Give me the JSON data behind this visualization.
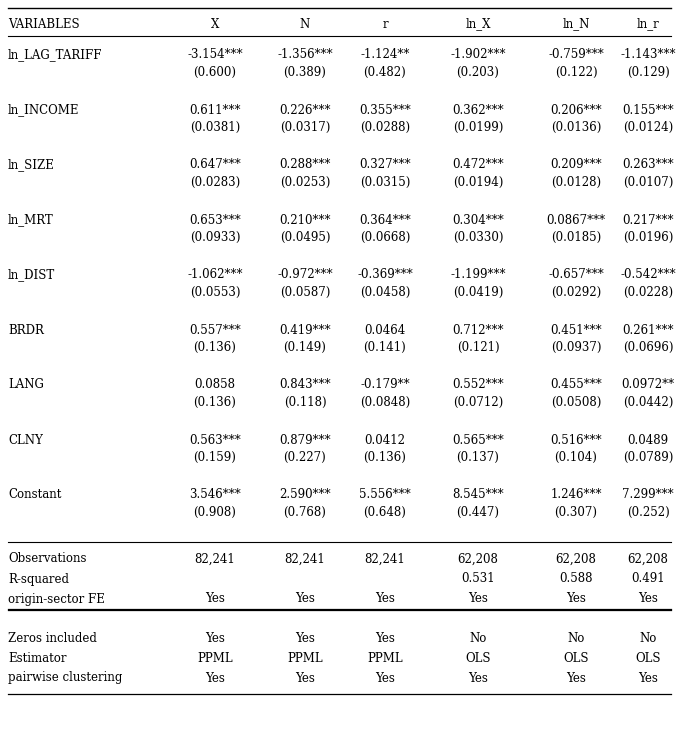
{
  "columns": [
    "VARIABLES",
    "X",
    "N",
    "r",
    "ln_X",
    "ln_N",
    "ln_r"
  ],
  "rows": [
    {
      "var": "ln_LAG_TARIFF",
      "coefs": [
        "-3.154***",
        "-1.356***",
        "-1.124**",
        "-1.902***",
        "-0.759***",
        "-1.143***"
      ],
      "ses": [
        "(0.600)",
        "(0.389)",
        "(0.482)",
        "(0.203)",
        "(0.122)",
        "(0.129)"
      ]
    },
    {
      "var": "ln_INCOME",
      "coefs": [
        "0.611***",
        "0.226***",
        "0.355***",
        "0.362***",
        "0.206***",
        "0.155***"
      ],
      "ses": [
        "(0.0381)",
        "(0.0317)",
        "(0.0288)",
        "(0.0199)",
        "(0.0136)",
        "(0.0124)"
      ]
    },
    {
      "var": "ln_SIZE",
      "coefs": [
        "0.647***",
        "0.288***",
        "0.327***",
        "0.472***",
        "0.209***",
        "0.263***"
      ],
      "ses": [
        "(0.0283)",
        "(0.0253)",
        "(0.0315)",
        "(0.0194)",
        "(0.0128)",
        "(0.0107)"
      ]
    },
    {
      "var": "ln_MRT",
      "coefs": [
        "0.653***",
        "0.210***",
        "0.364***",
        "0.304***",
        "0.0867***",
        "0.217***"
      ],
      "ses": [
        "(0.0933)",
        "(0.0495)",
        "(0.0668)",
        "(0.0330)",
        "(0.0185)",
        "(0.0196)"
      ]
    },
    {
      "var": "ln_DIST",
      "coefs": [
        "-1.062***",
        "-0.972***",
        "-0.369***",
        "-1.199***",
        "-0.657***",
        "-0.542***"
      ],
      "ses": [
        "(0.0553)",
        "(0.0587)",
        "(0.0458)",
        "(0.0419)",
        "(0.0292)",
        "(0.0228)"
      ]
    },
    {
      "var": "BRDR",
      "coefs": [
        "0.557***",
        "0.419***",
        "0.0464",
        "0.712***",
        "0.451***",
        "0.261***"
      ],
      "ses": [
        "(0.136)",
        "(0.149)",
        "(0.141)",
        "(0.121)",
        "(0.0937)",
        "(0.0696)"
      ]
    },
    {
      "var": "LANG",
      "coefs": [
        "0.0858",
        "0.843***",
        "-0.179**",
        "0.552***",
        "0.455***",
        "0.0972**"
      ],
      "ses": [
        "(0.136)",
        "(0.118)",
        "(0.0848)",
        "(0.0712)",
        "(0.0508)",
        "(0.0442)"
      ]
    },
    {
      "var": "CLNY",
      "coefs": [
        "0.563***",
        "0.879***",
        "0.0412",
        "0.565***",
        "0.516***",
        "0.0489"
      ],
      "ses": [
        "(0.159)",
        "(0.227)",
        "(0.136)",
        "(0.137)",
        "(0.104)",
        "(0.0789)"
      ]
    },
    {
      "var": "Constant",
      "coefs": [
        "3.546***",
        "2.590***",
        "5.556***",
        "8.545***",
        "1.246***",
        "7.299***"
      ],
      "ses": [
        "(0.908)",
        "(0.768)",
        "(0.648)",
        "(0.447)",
        "(0.307)",
        "(0.252)"
      ]
    }
  ],
  "bottom_rows": [
    {
      "label": "Observations",
      "vals": [
        "82,241",
        "82,241",
        "82,241",
        "62,208",
        "62,208",
        "62,208"
      ]
    },
    {
      "label": "R-squared",
      "vals": [
        "",
        "",
        "",
        "0.531",
        "0.588",
        "0.491"
      ]
    },
    {
      "label": "origin-sector FE",
      "vals": [
        "Yes",
        "Yes",
        "Yes",
        "Yes",
        "Yes",
        "Yes"
      ]
    }
  ],
  "footer_rows": [
    {
      "label": "Zeros included",
      "vals": [
        "Yes",
        "Yes",
        "Yes",
        "No",
        "No",
        "No"
      ]
    },
    {
      "label": "Estimator",
      "vals": [
        "PPML",
        "PPML",
        "PPML",
        "OLS",
        "OLS",
        "OLS"
      ]
    },
    {
      "label": "pairwise clustering",
      "vals": [
        "Yes",
        "Yes",
        "Yes",
        "Yes",
        "Yes",
        "Yes"
      ]
    }
  ],
  "bg_color": "#ffffff",
  "text_color": "#000000",
  "font_size": 8.5
}
